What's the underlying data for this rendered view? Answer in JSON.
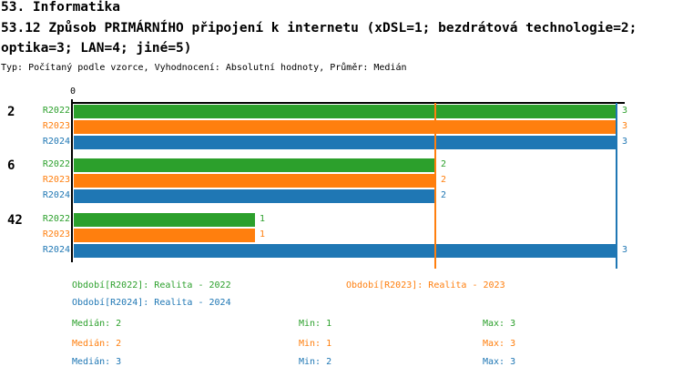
{
  "header": {
    "section": "53. Informatika",
    "title_line1": "53.12 Způsob PRIMÁRNÍHO připojení k internetu (xDSL=1; bezdrátová technologie=2;",
    "title_line2": "optika=3; LAN=4; jiné=5)",
    "meta": "Typ: Počítaný podle vzorce, Vyhodnocení: Absolutní hodnoty, Průměr: Medián"
  },
  "colors": {
    "r2022_green": "#2ca02c",
    "r2023_orange": "#ff7f0e",
    "r2024_blue": "#1f77b4",
    "axis_black": "#000000"
  },
  "chart_data": {
    "type": "bar",
    "orientation": "horizontal",
    "title": "53.12 Způsob PRIMÁRNÍHO připojení k internetu (xDSL=1; bezdrátová technologie=2; optika=3; LAN=4; jiné=5)",
    "x_tick_label": "0",
    "xlim": [
      0,
      3
    ],
    "grid": false,
    "categories": [
      "2",
      "6",
      "42"
    ],
    "series": [
      {
        "name": "R2022",
        "color": "#2ca02c",
        "values": [
          3,
          2,
          1
        ]
      },
      {
        "name": "R2023",
        "color": "#ff7f0e",
        "values": [
          3,
          2,
          1
        ]
      },
      {
        "name": "R2024",
        "color": "#1f77b4",
        "values": [
          3,
          2,
          3
        ]
      }
    ],
    "median_lines": [
      {
        "series": "R2022",
        "value": 2,
        "color": "#2ca02c"
      },
      {
        "series": "R2023",
        "value": 2,
        "color": "#ff7f0e"
      },
      {
        "series": "R2024",
        "value": 3,
        "color": "#1f77b4"
      }
    ]
  },
  "legend": {
    "periods": [
      {
        "label": "Období[R2022]: Realita - 2022",
        "color": "#2ca02c"
      },
      {
        "label": "Období[R2023]: Realita - 2023",
        "color": "#ff7f0e"
      },
      {
        "label": "Období[R2024]: Realita - 2024",
        "color": "#1f77b4"
      }
    ],
    "stats": [
      {
        "median": "Medián: 2",
        "min": "Min: 1",
        "max": "Max: 3",
        "color": "#2ca02c"
      },
      {
        "median": "Medián: 2",
        "min": "Min: 1",
        "max": "Max: 3",
        "color": "#ff7f0e"
      },
      {
        "median": "Medián: 3",
        "min": "Min: 2",
        "max": "Max: 3",
        "color": "#1f77b4"
      }
    ]
  }
}
